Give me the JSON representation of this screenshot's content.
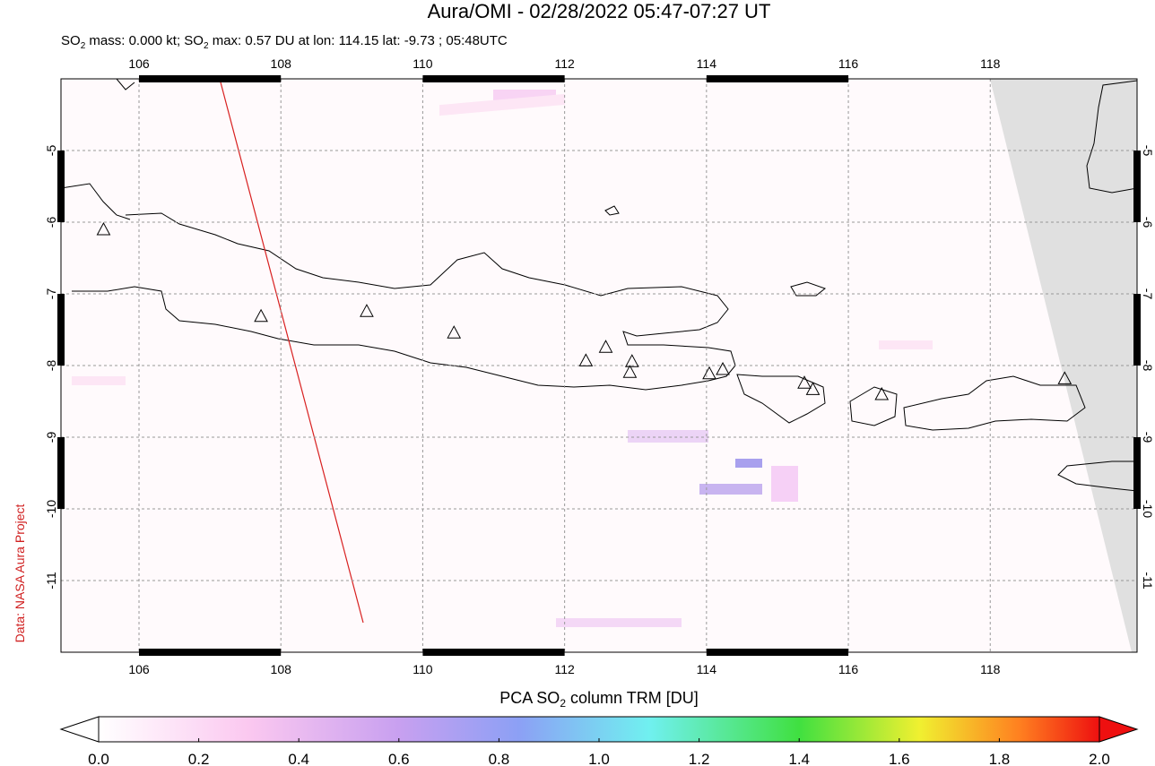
{
  "title": "Aura/OMI - 02/28/2022 05:47-07:27 UT",
  "subtitle": [
    "SO",
    "2",
    " mass: 0.000 kt; SO",
    "2",
    " max: 0.57 DU at lon: 114.15 lat: -9.73 ; 05:48UTC"
  ],
  "credit": "Data: NASA Aura Project",
  "map": {
    "lonlim": [
      104.9,
      120.07
    ],
    "latlim": [
      -12,
      -4
    ],
    "lonticks": [
      106,
      108,
      110,
      112,
      114,
      116,
      118
    ],
    "latticks": [
      -5,
      -6,
      -7,
      -8,
      -9,
      -10,
      -11
    ],
    "volcanoes": [
      [
        105.5,
        -6.1
      ],
      [
        107.72,
        -7.31
      ],
      [
        109.21,
        -7.24
      ],
      [
        110.44,
        -7.54
      ],
      [
        112.3,
        -7.93
      ],
      [
        112.58,
        -7.74
      ],
      [
        112.95,
        -7.94
      ],
      [
        112.92,
        -8.09
      ],
      [
        114.04,
        -8.11
      ],
      [
        114.23,
        -8.05
      ],
      [
        115.38,
        -8.24
      ],
      [
        115.5,
        -8.33
      ],
      [
        116.47,
        -8.4
      ],
      [
        119.05,
        -8.18
      ]
    ]
  },
  "colorbar": {
    "label": [
      "PCA SO",
      "2",
      " column TRM [DU]"
    ],
    "lim": [
      0,
      2
    ],
    "ticks": [
      {
        "value": 0,
        "label": "0.0"
      },
      0.2,
      0.4,
      0.6,
      0.8,
      {
        "value": 1,
        "label": "1.0"
      },
      1.2,
      1.4,
      1.6,
      1.8,
      {
        "value": 2,
        "label": "2.0"
      }
    ]
  }
}
